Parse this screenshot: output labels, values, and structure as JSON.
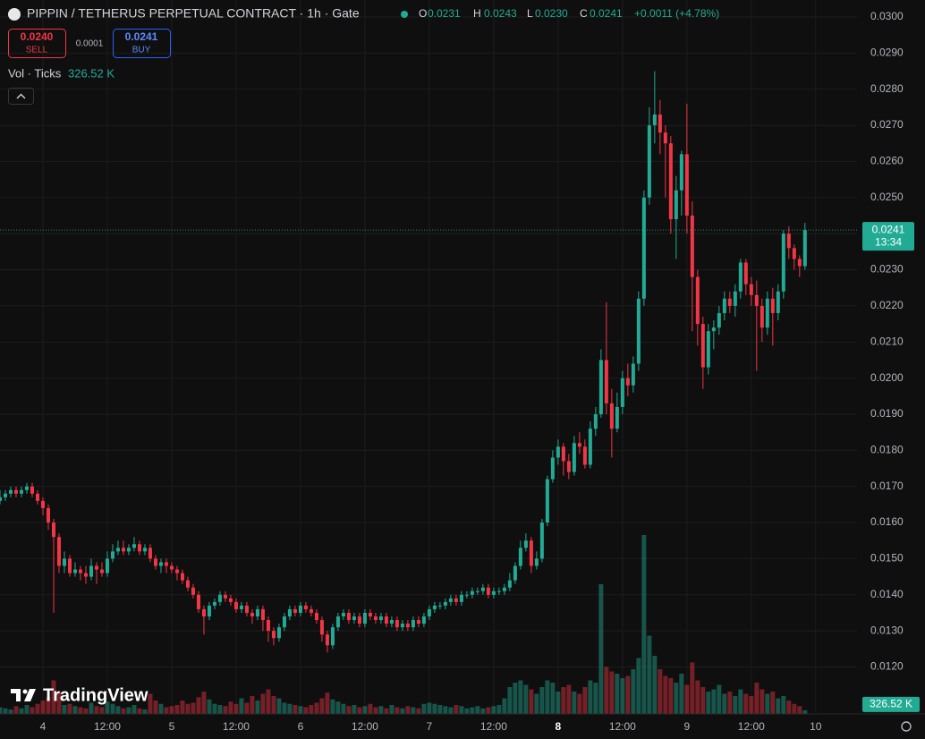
{
  "header": {
    "title": "PIPPIN / TETHERUS PERPETUAL CONTRACT · 1h · Gate",
    "o_label": "O",
    "open": "0.0231",
    "h_label": "H",
    "high": "0.0243",
    "l_label": "L",
    "low": "0.0230",
    "c_label": "C",
    "close": "0.0241",
    "change": "+0.0011 (+4.78%)"
  },
  "trade": {
    "sell_price": "0.0240",
    "sell": "SELL",
    "spread": "0.0001",
    "buy_price": "0.0241",
    "buy": "BUY"
  },
  "volume_indicator": {
    "label": "Vol · Ticks",
    "value": "326.52 K"
  },
  "price_tag": {
    "price": "0.0241",
    "countdown": "13:34"
  },
  "volume_tag": "326.52 K",
  "branding": "TradingView",
  "chart_data": {
    "type": "candlestick",
    "up_color": "#22ab94",
    "down_color": "#f23645",
    "grid": true,
    "xlim": [
      0,
      159.7
    ],
    "ylim": [
      0.0107,
      0.03047
    ],
    "xticks": [
      {
        "value": 8,
        "label": "4"
      },
      {
        "value": 20,
        "label": "12:00"
      },
      {
        "value": 32,
        "label": "5"
      },
      {
        "value": 44,
        "label": "12:00"
      },
      {
        "value": 56,
        "label": "6"
      },
      {
        "value": 68,
        "label": "12:00"
      },
      {
        "value": 80,
        "label": "7"
      },
      {
        "value": 92,
        "label": "12:00"
      },
      {
        "value": 104,
        "label": "8",
        "bold": true
      },
      {
        "value": 116,
        "label": "12:00"
      },
      {
        "value": 128,
        "label": "9"
      },
      {
        "value": 140,
        "label": "12:00"
      },
      {
        "value": 152,
        "label": "10"
      }
    ],
    "yticks": [
      {
        "value": 0.03,
        "label": "0.0300"
      },
      {
        "value": 0.029,
        "label": "0.0290"
      },
      {
        "value": 0.028,
        "label": "0.0280"
      },
      {
        "value": 0.027,
        "label": "0.0270"
      },
      {
        "value": 0.026,
        "label": "0.0260"
      },
      {
        "value": 0.025,
        "label": "0.0250"
      },
      {
        "value": 0.024,
        "label": "0.0240"
      },
      {
        "value": 0.023,
        "label": "0.0230"
      },
      {
        "value": 0.022,
        "label": "0.0220"
      },
      {
        "value": 0.021,
        "label": "0.0210"
      },
      {
        "value": 0.02,
        "label": "0.0200"
      },
      {
        "value": 0.019,
        "label": "0.0190"
      },
      {
        "value": 0.018,
        "label": "0.0180"
      },
      {
        "value": 0.017,
        "label": "0.0170"
      },
      {
        "value": 0.016,
        "label": "0.0160"
      },
      {
        "value": 0.015,
        "label": "0.0150"
      },
      {
        "value": 0.014,
        "label": "0.0140"
      },
      {
        "value": 0.013,
        "label": "0.0130"
      },
      {
        "value": 0.012,
        "label": "0.0120"
      }
    ],
    "open": [
      0.0166,
      0.0167,
      0.0168,
      0.0169,
      0.0168,
      0.0169,
      0.017,
      0.0168,
      0.0166,
      0.0164,
      0.016,
      0.0156,
      0.0148,
      0.015,
      0.0146,
      0.0147,
      0.0146,
      0.0145,
      0.0148,
      0.0147,
      0.0146,
      0.015,
      0.0152,
      0.0153,
      0.0152,
      0.0153,
      0.0154,
      0.0152,
      0.0153,
      0.015,
      0.0148,
      0.0149,
      0.0148,
      0.0147,
      0.0146,
      0.0144,
      0.0142,
      0.014,
      0.0136,
      0.0134,
      0.0137,
      0.0138,
      0.014,
      0.0139,
      0.0138,
      0.0136,
      0.0137,
      0.0135,
      0.0134,
      0.0136,
      0.0133,
      0.013,
      0.0128,
      0.0131,
      0.0134,
      0.0136,
      0.0135,
      0.0137,
      0.0136,
      0.0135,
      0.0133,
      0.0129,
      0.0126,
      0.0131,
      0.0134,
      0.0135,
      0.0133,
      0.0134,
      0.0132,
      0.0135,
      0.0134,
      0.0133,
      0.0134,
      0.0132,
      0.0133,
      0.0131,
      0.0132,
      0.0131,
      0.0133,
      0.0132,
      0.0134,
      0.0136,
      0.0137,
      0.0137,
      0.0138,
      0.0139,
      0.0138,
      0.014,
      0.014,
      0.0141,
      0.0141,
      0.0142,
      0.014,
      0.0141,
      0.0141,
      0.0142,
      0.0144,
      0.0148,
      0.0153,
      0.0155,
      0.0148,
      0.015,
      0.016,
      0.0172,
      0.0178,
      0.0181,
      0.0177,
      0.0174,
      0.0182,
      0.0181,
      0.0176,
      0.0186,
      0.019,
      0.0205,
      0.0193,
      0.0186,
      0.0192,
      0.02,
      0.0198,
      0.0204,
      0.0222,
      0.025,
      0.027,
      0.0273,
      0.0268,
      0.0265,
      0.0244,
      0.0252,
      0.0262,
      0.0245,
      0.0228,
      0.0215,
      0.0203,
      0.0213,
      0.0214,
      0.0218,
      0.0222,
      0.022,
      0.0224,
      0.0232,
      0.0226,
      0.0223,
      0.022,
      0.0214,
      0.0222,
      0.0218,
      0.0224,
      0.024,
      0.0236,
      0.0233,
      0.0231
    ],
    "high": [
      0.0169,
      0.0169,
      0.017,
      0.017,
      0.017,
      0.0171,
      0.0171,
      0.0169,
      0.0167,
      0.0165,
      0.0161,
      0.0157,
      0.0152,
      0.0151,
      0.0149,
      0.0148,
      0.0148,
      0.015,
      0.0149,
      0.0149,
      0.0152,
      0.0154,
      0.0155,
      0.0155,
      0.0154,
      0.0156,
      0.0155,
      0.0154,
      0.0154,
      0.0151,
      0.015,
      0.015,
      0.0149,
      0.0148,
      0.0147,
      0.0145,
      0.0143,
      0.0141,
      0.0137,
      0.0138,
      0.0139,
      0.0141,
      0.0141,
      0.014,
      0.0139,
      0.0138,
      0.0138,
      0.0136,
      0.0137,
      0.0137,
      0.0134,
      0.0131,
      0.0132,
      0.0135,
      0.0137,
      0.0137,
      0.0138,
      0.0138,
      0.0137,
      0.0136,
      0.0134,
      0.013,
      0.0132,
      0.0135,
      0.0136,
      0.0136,
      0.0135,
      0.0135,
      0.0136,
      0.0136,
      0.0135,
      0.0135,
      0.0135,
      0.0134,
      0.0134,
      0.0133,
      0.0133,
      0.0134,
      0.0134,
      0.0135,
      0.0137,
      0.0138,
      0.0138,
      0.0139,
      0.014,
      0.014,
      0.0141,
      0.0141,
      0.0142,
      0.0142,
      0.0143,
      0.0143,
      0.0142,
      0.0142,
      0.0143,
      0.0146,
      0.0149,
      0.0155,
      0.0157,
      0.0156,
      0.0152,
      0.0161,
      0.0173,
      0.018,
      0.0183,
      0.0182,
      0.0179,
      0.0184,
      0.0185,
      0.0183,
      0.0188,
      0.0192,
      0.0208,
      0.0221,
      0.0197,
      0.0196,
      0.0202,
      0.0204,
      0.0206,
      0.0224,
      0.0252,
      0.0275,
      0.0285,
      0.0277,
      0.027,
      0.0267,
      0.0256,
      0.0263,
      0.0276,
      0.0249,
      0.023,
      0.0217,
      0.0215,
      0.0216,
      0.022,
      0.0224,
      0.0224,
      0.0226,
      0.0233,
      0.0233,
      0.0228,
      0.0227,
      0.0222,
      0.0224,
      0.0225,
      0.0226,
      0.0241,
      0.0242,
      0.0237,
      0.0234,
      0.0243
    ],
    "low": [
      0.0165,
      0.0166,
      0.0167,
      0.0167,
      0.0167,
      0.0168,
      0.0167,
      0.0165,
      0.0162,
      0.0158,
      0.0135,
      0.0146,
      0.0146,
      0.0145,
      0.0145,
      0.0144,
      0.0143,
      0.0144,
      0.0143,
      0.0145,
      0.0145,
      0.0149,
      0.0151,
      0.0151,
      0.0151,
      0.0152,
      0.0151,
      0.0151,
      0.0149,
      0.0147,
      0.0146,
      0.0146,
      0.0146,
      0.0144,
      0.0143,
      0.0141,
      0.0139,
      0.0135,
      0.0129,
      0.0133,
      0.0136,
      0.0137,
      0.0138,
      0.0137,
      0.0135,
      0.0135,
      0.0134,
      0.0132,
      0.0133,
      0.013,
      0.0127,
      0.0126,
      0.0127,
      0.013,
      0.0133,
      0.0134,
      0.0134,
      0.0135,
      0.0134,
      0.0132,
      0.0127,
      0.0124,
      0.0125,
      0.013,
      0.0133,
      0.0132,
      0.0132,
      0.0131,
      0.0131,
      0.0133,
      0.0132,
      0.0132,
      0.0131,
      0.0131,
      0.013,
      0.013,
      0.013,
      0.013,
      0.0131,
      0.0131,
      0.0133,
      0.0135,
      0.0136,
      0.0136,
      0.0137,
      0.0137,
      0.0137,
      0.0139,
      0.0139,
      0.014,
      0.014,
      0.0139,
      0.0139,
      0.014,
      0.014,
      0.0141,
      0.0143,
      0.0147,
      0.0152,
      0.0146,
      0.0147,
      0.0149,
      0.0159,
      0.0171,
      0.0176,
      0.0173,
      0.0172,
      0.0173,
      0.0179,
      0.0175,
      0.0175,
      0.0184,
      0.0189,
      0.019,
      0.0178,
      0.0185,
      0.019,
      0.0195,
      0.0196,
      0.0202,
      0.022,
      0.0248,
      0.0265,
      0.0262,
      0.025,
      0.024,
      0.0233,
      0.0245,
      0.024,
      0.0213,
      0.0209,
      0.0197,
      0.0201,
      0.0208,
      0.0212,
      0.0216,
      0.0218,
      0.0217,
      0.0222,
      0.0223,
      0.022,
      0.0202,
      0.021,
      0.0212,
      0.0209,
      0.0216,
      0.0222,
      0.0233,
      0.023,
      0.0228,
      0.023
    ],
    "close": [
      0.0167,
      0.0168,
      0.0169,
      0.0168,
      0.0169,
      0.017,
      0.0168,
      0.0166,
      0.0164,
      0.016,
      0.0156,
      0.0148,
      0.015,
      0.0146,
      0.0147,
      0.0146,
      0.0145,
      0.0148,
      0.0147,
      0.0146,
      0.015,
      0.0152,
      0.0153,
      0.0152,
      0.0153,
      0.0154,
      0.0152,
      0.0153,
      0.015,
      0.0148,
      0.0149,
      0.0148,
      0.0147,
      0.0146,
      0.0144,
      0.0142,
      0.014,
      0.0136,
      0.0134,
      0.0137,
      0.0138,
      0.014,
      0.0139,
      0.0138,
      0.0136,
      0.0137,
      0.0135,
      0.0134,
      0.0136,
      0.0133,
      0.013,
      0.0128,
      0.0131,
      0.0134,
      0.0136,
      0.0135,
      0.0137,
      0.0136,
      0.0135,
      0.0133,
      0.0129,
      0.0126,
      0.0131,
      0.0134,
      0.0135,
      0.0133,
      0.0134,
      0.0132,
      0.0135,
      0.0134,
      0.0133,
      0.0134,
      0.0132,
      0.0133,
      0.0131,
      0.0132,
      0.0131,
      0.0133,
      0.0132,
      0.0134,
      0.0136,
      0.0137,
      0.0137,
      0.0138,
      0.0139,
      0.0138,
      0.014,
      0.014,
      0.0141,
      0.0141,
      0.0142,
      0.014,
      0.0141,
      0.0141,
      0.0142,
      0.0144,
      0.0148,
      0.0153,
      0.0155,
      0.0148,
      0.015,
      0.016,
      0.0172,
      0.0178,
      0.0181,
      0.0177,
      0.0174,
      0.0182,
      0.0181,
      0.0176,
      0.0186,
      0.019,
      0.0205,
      0.0193,
      0.0186,
      0.0192,
      0.02,
      0.0198,
      0.0204,
      0.0222,
      0.025,
      0.027,
      0.0273,
      0.0268,
      0.0265,
      0.0244,
      0.0252,
      0.0262,
      0.0245,
      0.0228,
      0.0215,
      0.0203,
      0.0213,
      0.0214,
      0.0218,
      0.0222,
      0.022,
      0.0224,
      0.0232,
      0.0226,
      0.0223,
      0.022,
      0.0214,
      0.0222,
      0.0218,
      0.0224,
      0.024,
      0.0236,
      0.0233,
      0.0231,
      0.0241
    ],
    "volume": [
      600,
      500,
      400,
      700,
      500,
      800,
      600,
      900,
      1200,
      1500,
      3000,
      2000,
      800,
      900,
      700,
      600,
      500,
      1000,
      700,
      600,
      1100,
      900,
      700,
      500,
      600,
      800,
      500,
      400,
      1800,
      1200,
      900,
      600,
      700,
      800,
      1200,
      900,
      1000,
      1500,
      2000,
      1300,
      900,
      800,
      700,
      1100,
      900,
      1400,
      1000,
      1600,
      1200,
      1800,
      2200,
      1600,
      1400,
      1000,
      900,
      800,
      700,
      600,
      800,
      1000,
      1400,
      1900,
      1300,
      1100,
      900,
      700,
      800,
      600,
      700,
      900,
      600,
      700,
      500,
      800,
      600,
      500,
      700,
      600,
      500,
      900,
      1000,
      900,
      800,
      700,
      600,
      800,
      700,
      500,
      600,
      700,
      500,
      600,
      700,
      800,
      1400,
      2400,
      2800,
      3000,
      2600,
      2200,
      1800,
      2400,
      3000,
      2800,
      2000,
      2400,
      2600,
      2000,
      1800,
      2400,
      3000,
      2800,
      11600,
      4200,
      3800,
      3600,
      3200,
      3400,
      4000,
      5000,
      16000,
      7000,
      5200,
      4000,
      3400,
      3200,
      2800,
      3600,
      2600,
      4600,
      3000,
      2400,
      2000,
      2200,
      2600,
      1800,
      2000,
      1600,
      2200,
      1800,
      1600,
      2800,
      2200,
      1800,
      2000,
      1400,
      1600,
      1200,
      900,
      700,
      326.52
    ]
  }
}
